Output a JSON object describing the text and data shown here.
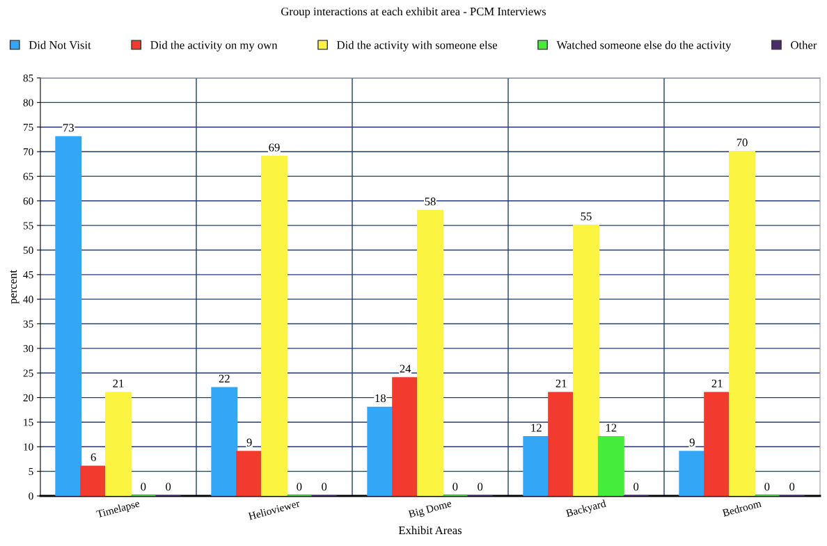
{
  "chart_data": {
    "type": "bar",
    "title": "Group interactions at each exhibit area - PCM Interviews",
    "xlabel": "Exhibit Areas",
    "ylabel": "percent",
    "categories": [
      "Timelapse",
      "Helioviewer",
      "Big Dome",
      "Backyard",
      "Bedroom"
    ],
    "series": [
      {
        "name": "Did Not Visit",
        "color": "#33a6f5",
        "values": [
          73,
          22,
          18,
          12,
          9
        ]
      },
      {
        "name": "Did the activity on my own",
        "color": "#f23a2e",
        "values": [
          6,
          9,
          24,
          21,
          21
        ]
      },
      {
        "name": "Did the activity with someone else",
        "color": "#fbf542",
        "values": [
          21,
          69,
          58,
          55,
          70
        ]
      },
      {
        "name": "Watched someone else do the activity",
        "color": "#45ec3c",
        "values": [
          0,
          0,
          0,
          12,
          0
        ]
      },
      {
        "name": "Other",
        "color": "#4b2a6e",
        "values": [
          0,
          0,
          0,
          0,
          0
        ]
      }
    ],
    "ylim": [
      0,
      85
    ],
    "yticks": [
      0,
      5,
      10,
      15,
      20,
      25,
      30,
      35,
      40,
      45,
      50,
      55,
      60,
      65,
      70,
      75,
      80,
      85
    ],
    "grid": true,
    "legend": "top",
    "data_labels": true
  }
}
